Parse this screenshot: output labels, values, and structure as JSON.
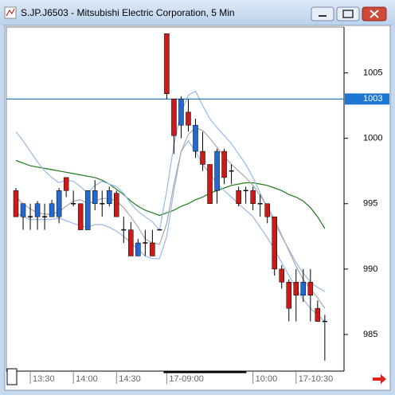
{
  "chart_data": {
    "type": "candlestick",
    "title": "S.JP.J6503 - Mitsubishi Electric Corporation, 5 Min",
    "categories": [
      null,
      null,
      "13:30",
      null,
      null,
      null,
      null,
      null,
      "14:00",
      null,
      null,
      null,
      null,
      null,
      "14:30",
      null,
      null,
      null,
      null,
      null,
      null,
      "17-09:00",
      null,
      null,
      null,
      null,
      null,
      null,
      null,
      null,
      null,
      null,
      null,
      "10:00",
      null,
      null,
      null,
      null,
      null,
      "17-10:30",
      null,
      null,
      null,
      null
    ],
    "open": [
      996,
      994,
      994,
      994,
      994,
      994,
      994,
      997,
      995,
      995,
      993,
      995,
      995,
      995,
      995.8,
      993,
      993,
      991,
      992,
      992,
      993,
      1008,
      1003,
      1001,
      1002,
      999,
      999,
      998,
      996,
      999,
      997.5,
      996,
      996,
      996,
      995,
      995,
      994,
      990,
      989,
      989,
      988,
      989,
      987,
      986
    ],
    "high": [
      996.2,
      995,
      995,
      995.2,
      995,
      995.3,
      996.2,
      997,
      996,
      995,
      996,
      996.8,
      996,
      996.3,
      996,
      994,
      993.6,
      992.3,
      993,
      993,
      993,
      1008,
      1003,
      1003.2,
      1003,
      1001.5,
      1000.5,
      998,
      999.2,
      999.2,
      998,
      996.3,
      996.3,
      996.3,
      995.7,
      995,
      994,
      990.3,
      989.2,
      990,
      990,
      990,
      987.6,
      986.5
    ],
    "low": [
      994,
      993,
      993,
      993,
      993,
      994,
      993.5,
      995.5,
      994.8,
      993,
      993,
      994.5,
      994,
      994.8,
      994,
      992,
      991,
      991,
      991,
      991,
      993,
      1003,
      998.8,
      1000,
      1000.5,
      998.5,
      997.5,
      995,
      995,
      996.5,
      996.5,
      994.8,
      995,
      994.5,
      994,
      993.5,
      989.5,
      988.5,
      986,
      986,
      987.5,
      986,
      986,
      983
    ],
    "close": [
      994,
      995,
      994,
      995,
      994,
      995,
      996,
      996,
      995,
      993,
      996,
      996,
      995,
      996,
      994,
      993,
      991,
      992,
      992,
      991,
      993,
      1003.4,
      1000.2,
      1003,
      1001,
      1001,
      998,
      995,
      999,
      997,
      997.5,
      995,
      996,
      995,
      995,
      994,
      990,
      989,
      987,
      988,
      989,
      988,
      986,
      986
    ],
    "up_color": "#2468d0",
    "down_color": "#cc1a1a",
    "flat_color": "#000000",
    "overlays": [
      {
        "color": "#1f7a1f",
        "values": [
          998.3,
          998.1,
          997.9,
          997.8,
          997.7,
          997.6,
          997.5,
          997.4,
          997.3,
          997.2,
          997.1,
          997.0,
          996.8,
          996.5,
          996.1,
          995.7,
          995.2,
          994.8,
          994.5,
          994.3,
          994.1,
          994.3,
          994.5,
          994.8,
          995.0,
          995.3,
          995.5,
          995.8,
          996.0,
          996.2,
          996.4,
          996.5,
          996.6,
          996.6,
          996.5,
          996.4,
          996.2,
          996.0,
          995.7,
          995.5,
          995.2,
          994.7,
          994.0,
          993.1
        ]
      },
      {
        "color": "#9ab8e8",
        "values": [
          1000.5,
          999.8,
          999.0,
          998.2,
          997.5,
          997.0,
          996.6,
          996.8,
          996.7,
          996.3,
          995.8,
          996.4,
          996.7,
          996.5,
          996.3,
          995.8,
          995.0,
          994.4,
          994.0,
          993.6,
          993.0,
          996.0,
          999.5,
          1002.0,
          1003.3,
          1003.6,
          1002.5,
          1001.5,
          1000.8,
          1000.2,
          999.6,
          998.8,
          998.0,
          997.0,
          995.8,
          994.7,
          993.5,
          992.5,
          991.5,
          990.5,
          989.7,
          989.0,
          988.6,
          988.3
        ]
      },
      {
        "color": "#9ab8e8",
        "values": [
          994.3,
          994.0,
          993.8,
          993.8,
          993.8,
          993.8,
          993.9,
          993.7,
          993.5,
          993.3,
          993.2,
          993.4,
          993.4,
          993.2,
          992.9,
          992.5,
          992.0,
          991.5,
          991.0,
          990.8,
          990.8,
          992.5,
          996.0,
          999.0,
          999.8,
          999.0,
          998.0,
          997.3,
          996.5,
          996.0,
          995.5,
          995.0,
          994.5,
          994.0,
          993.2,
          992.4,
          991.5,
          990.5,
          989.5,
          988.5,
          987.7,
          987.0,
          986.5,
          986.0
        ]
      },
      {
        "color": "#a8a8a8",
        "values": [
          995.5,
          995.0,
          994.6,
          994.3,
          994.2,
          994.2,
          994.4,
          994.8,
          995.2,
          995.3,
          995.0,
          995.2,
          995.4,
          995.4,
          995.2,
          994.7,
          994.0,
          993.2,
          992.3,
          992.0,
          991.9,
          993.5,
          996.5,
          999.0,
          1000.3,
          1000.8,
          1000.6,
          1000.0,
          999.3,
          998.6,
          998.0,
          997.5,
          997.0,
          996.4,
          995.6,
          994.8,
          993.8,
          992.6,
          991.4,
          990.2,
          989.2,
          988.5,
          987.8,
          987.0
        ]
      }
    ],
    "ylim": [
      982.2,
      1008.5
    ],
    "yticks": [
      985,
      990,
      995,
      1000,
      1005
    ],
    "hline": 1003,
    "hline_color": "#2a7fc0"
  }
}
